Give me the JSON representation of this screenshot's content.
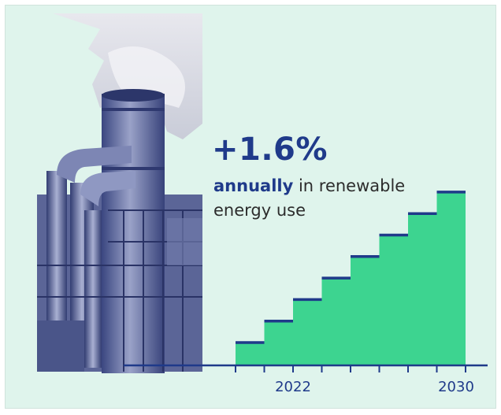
{
  "headline": "+1.6%",
  "subtitle": {
    "emphasis": "annually",
    "rest_line1": " in renewable",
    "line2": "energy use"
  },
  "colors": {
    "background": "#dff4ec",
    "accent": "#1f3a8a",
    "fill": "#3dd490",
    "photo_tint": "#4a5a95"
  },
  "photo": {
    "subject": "industrial smokestack and pipes"
  },
  "chart_data": {
    "type": "area",
    "style": "step",
    "steps": 8,
    "values": [
      1,
      2,
      3,
      4,
      5,
      6,
      7,
      8
    ],
    "x_ticks": [
      "",
      "2022",
      "",
      "",
      "",
      "",
      "",
      "2030"
    ],
    "title": "+1.6%",
    "xlabel": "",
    "ylabel": ""
  }
}
